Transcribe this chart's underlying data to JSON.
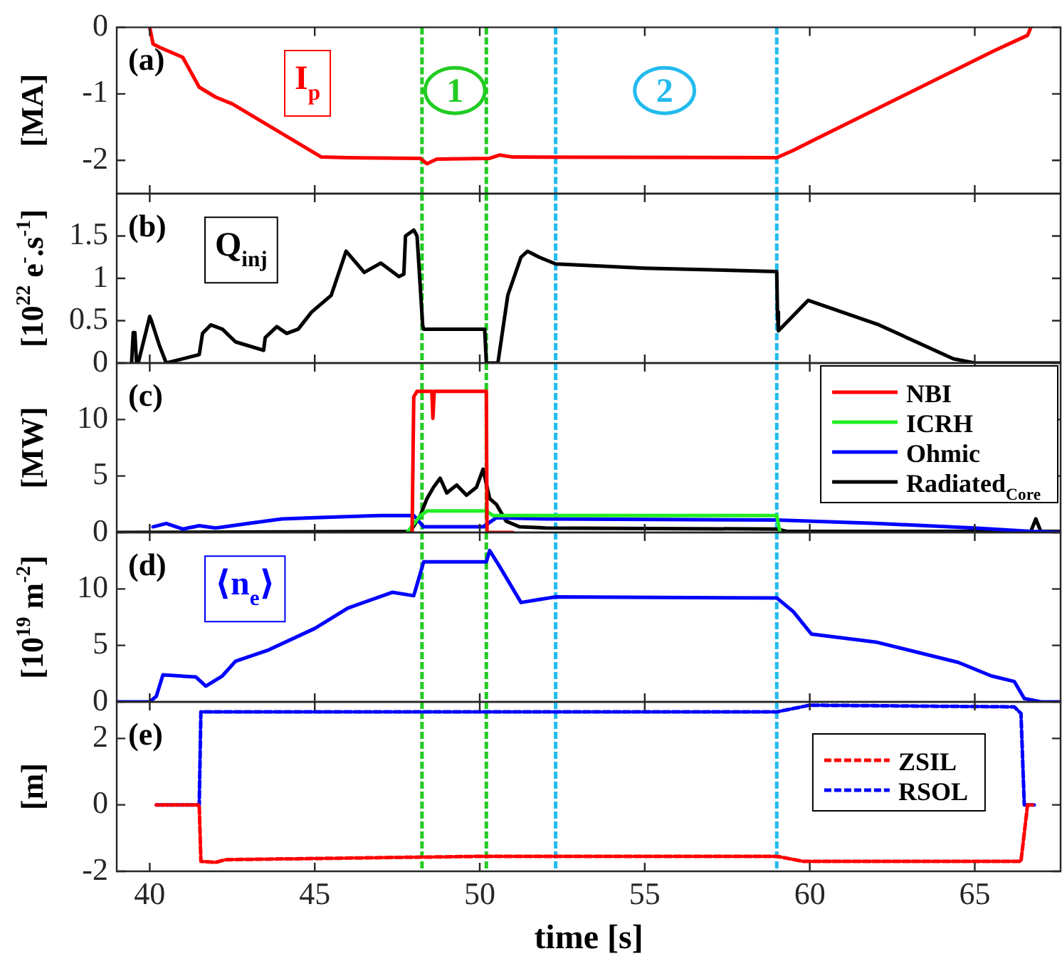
{
  "chart_data": [
    {
      "type": "line",
      "ylabel": "[MA]",
      "xlim": [
        39,
        67.6
      ],
      "xticks": [
        40,
        45,
        50,
        55,
        60,
        65
      ],
      "ylim": [
        -2.5,
        0
      ],
      "yticks": [
        -2,
        -1,
        0
      ],
      "tick_labels": "y",
      "legend": "top left",
      "series": [
        {
          "name": "I$_{p}$",
          "color": "#ff0000",
          "x": [
            40.0,
            40.1,
            40.3,
            41.0,
            41.5,
            42.0,
            42.5,
            45.2,
            46.0,
            48.2,
            48.4,
            48.7,
            50.3,
            50.6,
            51.0,
            59.0,
            59.5,
            60.1,
            65.6,
            66.6,
            66.7
          ],
          "values": [
            0,
            -0.25,
            -0.3,
            -0.45,
            -0.9,
            -1.05,
            -1.15,
            -1.95,
            -1.96,
            -1.97,
            -2.05,
            -1.98,
            -1.97,
            -1.92,
            -1.95,
            -1.96,
            -1.85,
            -1.7,
            -0.35,
            -0.12,
            0
          ]
        }
      ],
      "ref_lines": [
        {
          "axis": "x",
          "value": 48.25,
          "color": "#22cc22",
          "line_style": "dashed"
        },
        {
          "axis": "x",
          "value": 50.2,
          "color": "#22cc22",
          "line_style": "dashed"
        },
        {
          "axis": "x",
          "value": 52.3,
          "color": "#22bbee",
          "line_style": "dashed"
        },
        {
          "axis": "x",
          "value": 59.0,
          "color": "#22bbee",
          "line_style": "dashed"
        }
      ],
      "annotations": [
        "(a)",
        {
          "text": "1",
          "x": 49.25,
          "y": -0.95
        },
        {
          "text": "2",
          "x": 55.6,
          "y": -0.95
        }
      ]
    },
    {
      "type": "line",
      "ylabel": "[10$^{22}$ e$^{-}$.s$^{-1}$]",
      "xlim": [
        39,
        67.6
      ],
      "xticks": [
        40,
        45,
        50,
        55,
        60,
        65
      ],
      "ylim": [
        0,
        2
      ],
      "yticks": [
        0,
        0.5,
        1,
        1.5
      ],
      "tick_labels": "y",
      "legend": "top left",
      "series": [
        {
          "name": "Q$_{inj}$",
          "color": "#000000",
          "x": [
            39.45,
            39.5,
            39.55,
            39.6,
            39.65,
            40.0,
            40.05,
            40.3,
            40.5,
            41.5,
            41.6,
            41.85,
            42.2,
            42.6,
            43.45,
            43.5,
            43.85,
            44.15,
            44.5,
            44.9,
            45.5,
            45.95,
            46.5,
            47.0,
            47.55,
            47.7,
            47.75,
            48.0,
            48.1,
            48.27,
            48.3,
            50.15,
            50.2,
            50.55,
            50.85,
            51.25,
            51.45,
            51.8,
            52.3,
            55.0,
            59.0,
            59.02,
            59.05,
            59.95,
            62.1,
            64.35,
            65.0,
            67.6
          ],
          "values": [
            0,
            0.36,
            0.36,
            0,
            0,
            0.55,
            0.5,
            0.2,
            0,
            0.1,
            0.35,
            0.45,
            0.4,
            0.25,
            0.15,
            0.3,
            0.43,
            0.35,
            0.4,
            0.6,
            0.8,
            1.32,
            1.07,
            1.18,
            1.02,
            1.05,
            1.5,
            1.57,
            1.5,
            0.45,
            0.4,
            0.4,
            0,
            0,
            0.8,
            1.25,
            1.32,
            1.25,
            1.17,
            1.12,
            1.08,
            0.6,
            0.38,
            0.74,
            0.45,
            0.05,
            0,
            0
          ]
        }
      ],
      "ref_lines": [
        {
          "axis": "x",
          "value": 48.25,
          "color": "#22cc22",
          "line_style": "dashed"
        },
        {
          "axis": "x",
          "value": 50.2,
          "color": "#22cc22",
          "line_style": "dashed"
        },
        {
          "axis": "x",
          "value": 52.3,
          "color": "#22bbee",
          "line_style": "dashed"
        },
        {
          "axis": "x",
          "value": 59.0,
          "color": "#22bbee",
          "line_style": "dashed"
        }
      ],
      "annotations": [
        "(b)"
      ]
    },
    {
      "type": "line",
      "ylabel": "[MW]",
      "xlim": [
        39,
        67.6
      ],
      "xticks": [
        40,
        45,
        50,
        55,
        60,
        65
      ],
      "ylim": [
        0,
        15
      ],
      "yticks": [
        0,
        5,
        10
      ],
      "tick_labels": "y",
      "legend": "top right",
      "series": [
        {
          "name": "NBI",
          "color": "#ff0000",
          "x": [
            47.95,
            48.0,
            48.1,
            48.55,
            48.58,
            48.62,
            50.2,
            50.22,
            51.0
          ],
          "values": [
            0,
            12,
            12.5,
            12.5,
            10.1,
            12.5,
            12.5,
            0,
            0
          ]
        },
        {
          "name": "ICRH",
          "color": "#22ee22",
          "x": [
            47.8,
            48.2,
            48.4,
            50.2,
            50.4,
            59.0,
            59.1
          ],
          "values": [
            0,
            1.5,
            1.9,
            1.9,
            1.5,
            1.5,
            0
          ]
        },
        {
          "name": "Ohmic",
          "color": "#0000ff",
          "x": [
            40.1,
            40.5,
            41.0,
            41.5,
            42.0,
            43.0,
            44.0,
            45.0,
            47.0,
            48.0,
            48.3,
            50.1,
            50.5,
            52.0,
            59.0,
            62.0,
            65.0,
            66.7,
            67.6
          ],
          "values": [
            0.5,
            0.8,
            0.3,
            0.6,
            0.4,
            0.8,
            1.2,
            1.3,
            1.5,
            1.5,
            0.5,
            0.5,
            1.3,
            1.2,
            1.1,
            0.8,
            0.4,
            0.1,
            0
          ]
        },
        {
          "name": "Radiated$_{Core}$",
          "color": "#000000",
          "x": [
            39,
            47.9,
            48.2,
            48.4,
            48.6,
            48.8,
            49.0,
            49.3,
            49.6,
            49.9,
            50.1,
            50.3,
            50.5,
            50.8,
            51.2,
            52.0,
            59.0,
            59.3,
            66.7,
            66.85,
            67.0,
            67.6
          ],
          "values": [
            0,
            0.1,
            1.5,
            3,
            4,
            4.8,
            3.5,
            4.2,
            3.3,
            4,
            5.6,
            3,
            2.5,
            1,
            0.5,
            0.4,
            0.3,
            0.1,
            0.1,
            1.2,
            0.1,
            0.1
          ]
        }
      ],
      "ref_lines": [
        {
          "axis": "x",
          "value": 48.25,
          "color": "#22cc22",
          "line_style": "dashed"
        },
        {
          "axis": "x",
          "value": 50.2,
          "color": "#22cc22",
          "line_style": "dashed"
        },
        {
          "axis": "x",
          "value": 52.3,
          "color": "#22bbee",
          "line_style": "dashed"
        },
        {
          "axis": "x",
          "value": 59.0,
          "color": "#22bbee",
          "line_style": "dashed"
        }
      ],
      "annotations": [
        "(c)"
      ]
    },
    {
      "type": "line",
      "ylabel": "[10$^{19}$ m$^{-2}$]",
      "xlim": [
        39,
        67.6
      ],
      "xticks": [
        40,
        45,
        50,
        55,
        60,
        65
      ],
      "ylim": [
        0,
        15
      ],
      "yticks": [
        0,
        5,
        10
      ],
      "tick_labels": "y",
      "legend": "top left",
      "series": [
        {
          "name": "⟨n$_{e}$⟩",
          "color": "#0000ff",
          "x": [
            39,
            40.0,
            40.2,
            40.4,
            41.4,
            41.7,
            42.2,
            42.6,
            43.6,
            45.0,
            46.0,
            47.35,
            48.0,
            48.3,
            50.2,
            50.3,
            50.6,
            51.25,
            52.3,
            59.0,
            59.5,
            60.05,
            62.0,
            64.5,
            65.5,
            66.2,
            66.5,
            67.0,
            67.6
          ],
          "values": [
            0,
            0,
            0.5,
            2.4,
            2.2,
            1.4,
            2.3,
            3.6,
            4.6,
            6.5,
            8.3,
            9.7,
            9.4,
            12.4,
            12.4,
            13.4,
            12,
            8.8,
            9.3,
            9.2,
            8,
            6,
            5.3,
            3.5,
            2.3,
            1.8,
            0.3,
            0,
            0
          ]
        }
      ],
      "ref_lines": [
        {
          "axis": "x",
          "value": 48.25,
          "color": "#22cc22",
          "line_style": "dashed"
        },
        {
          "axis": "x",
          "value": 50.2,
          "color": "#22cc22",
          "line_style": "dashed"
        },
        {
          "axis": "x",
          "value": 52.3,
          "color": "#22bbee",
          "line_style": "dashed"
        },
        {
          "axis": "x",
          "value": 59.0,
          "color": "#22bbee",
          "line_style": "dashed"
        }
      ],
      "annotations": [
        "(d)"
      ]
    },
    {
      "type": "line",
      "ylabel": "[m]",
      "xlabel": "time [s]",
      "xlim": [
        39,
        67.6
      ],
      "xticks": [
        40,
        45,
        50,
        55,
        60,
        65
      ],
      "ylim": [
        -2,
        3.1
      ],
      "yticks": [
        -2,
        0,
        2
      ],
      "legend": "right",
      "line_style": "dashed",
      "series": [
        {
          "name": "ZSIL",
          "color": "#ff0000",
          "x": [
            40.2,
            41.5,
            41.55,
            42.0,
            42.3,
            50.0,
            59.0,
            59.8,
            66.4,
            66.6,
            66.75
          ],
          "values": [
            0,
            0,
            -1.7,
            -1.73,
            -1.65,
            -1.55,
            -1.55,
            -1.7,
            -1.7,
            0,
            0
          ]
        },
        {
          "name": "RSOL",
          "color": "#0000ff",
          "x": [
            40.2,
            41.5,
            41.55,
            59.0,
            60.0,
            66.2,
            66.4,
            66.5,
            66.8
          ],
          "values": [
            0,
            0,
            2.8,
            2.8,
            3.0,
            2.95,
            2.75,
            0,
            0
          ]
        }
      ],
      "ref_lines": [
        {
          "axis": "x",
          "value": 48.25,
          "color": "#22cc22",
          "line_style": "dashed"
        },
        {
          "axis": "x",
          "value": 50.2,
          "color": "#22cc22",
          "line_style": "dashed"
        },
        {
          "axis": "x",
          "value": 52.3,
          "color": "#22bbee",
          "line_style": "dashed"
        },
        {
          "axis": "x",
          "value": 59.0,
          "color": "#22bbee",
          "line_style": "dashed"
        }
      ],
      "annotations": [
        "(e)"
      ]
    }
  ]
}
